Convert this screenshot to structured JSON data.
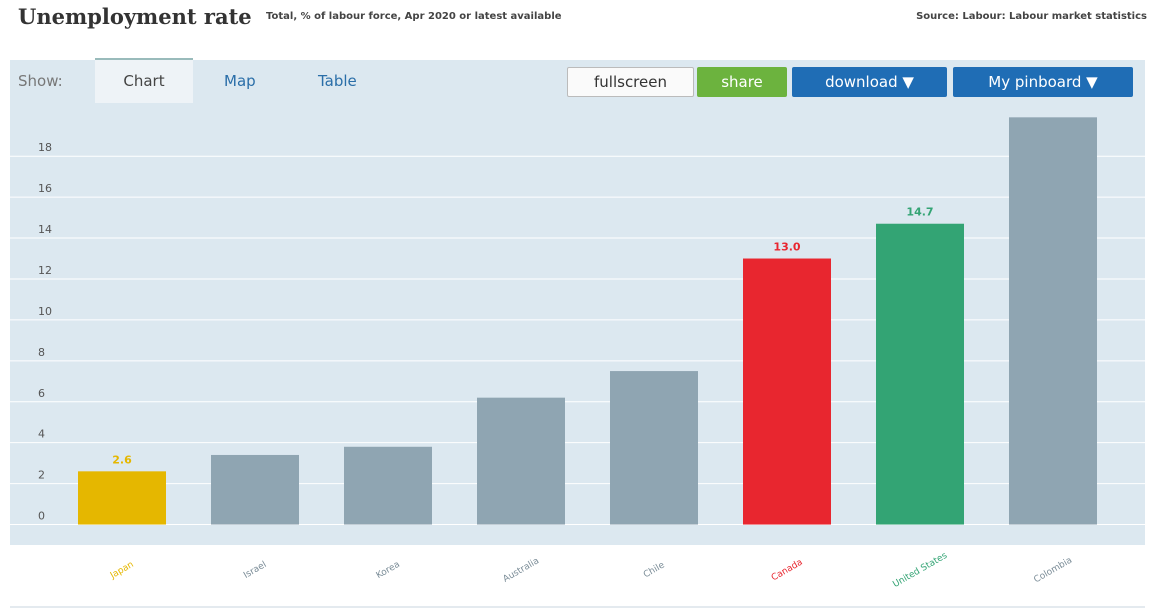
{
  "header": {
    "title": "Unemployment rate",
    "subtitle": "Total, % of labour force, Apr 2020 or latest available",
    "source": "Source: Labour: Labour market statistics"
  },
  "toolbar": {
    "show": "Show:",
    "tabs": [
      "Chart",
      "Map",
      "Table"
    ],
    "buttons": [
      "fullscreen",
      "share",
      "download ▼",
      "My pinboard ▼"
    ]
  },
  "chart_data": {
    "type": "bar",
    "categories": [
      "Japan",
      "Israel",
      "Korea",
      "Australia",
      "Chile",
      "Canada",
      "United States",
      "Colombia"
    ],
    "values": [
      2.6,
      3.4,
      3.8,
      6.2,
      7.5,
      13.0,
      14.7,
      19.9
    ],
    "value_labels": [
      "2.6",
      null,
      null,
      null,
      null,
      "13.0",
      "14.7",
      null
    ],
    "colors": [
      "#e5b700",
      "#8fa5b2",
      "#8fa5b2",
      "#8fa5b2",
      "#8fa5b2",
      "#e8262f",
      "#33a474",
      "#8fa5b2"
    ],
    "label_colors": [
      "#e5b700",
      "#7a8c97",
      "#7a8c97",
      "#7a8c97",
      "#7a8c97",
      "#e8262f",
      "#33a474",
      "#7a8c97"
    ],
    "ylim": [
      -1,
      20.6
    ],
    "yticks": [
      0,
      2,
      4,
      6,
      8,
      10,
      12,
      14,
      16,
      18
    ],
    "grid": true
  }
}
